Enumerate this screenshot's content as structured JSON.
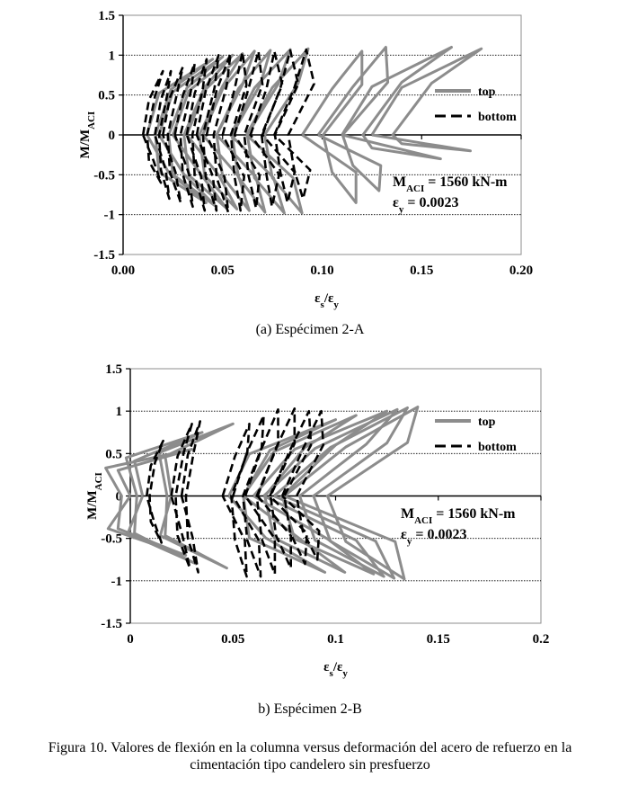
{
  "figure_caption_line1": "Figura 10. Valores de flexión en la columna versus deformación del acero de refuerzo en la",
  "figure_caption_line2": "cimentación tipo candelero sin presfuerzo",
  "chart_data": [
    {
      "type": "line",
      "caption": "(a) Espécimen 2-A",
      "xlabel_main": "ε",
      "xlabel_sub1": "s",
      "xlabel_mid": "/ε",
      "xlabel_sub2": "y",
      "ylabel_main": "M/M",
      "ylabel_sub": "ACI",
      "xlim": [
        0,
        0.2
      ],
      "ylim": [
        -1.5,
        1.5
      ],
      "xticks": [
        0,
        0.05,
        0.1,
        0.15,
        0.2
      ],
      "xtick_labels": [
        "0.00",
        "0.05",
        "0.10",
        "0.15",
        "0.20"
      ],
      "yticks": [
        1.5,
        1,
        0.5,
        0,
        -0.5,
        -1,
        -1.5
      ],
      "ytick_labels": [
        "1.5",
        "1",
        "0.5",
        "0",
        "-0.5",
        "-1",
        "-1.5"
      ],
      "gridlines_y": [
        1,
        0.5,
        -0.5,
        -1
      ],
      "legend_position": "upper-right",
      "annotation": {
        "m_main": "M",
        "m_sub": "ACI",
        "m_text": " = 1560 kN-m",
        "e_main": "ε",
        "e_sub": "y",
        "e_text": " = 0.0023"
      },
      "series": [
        {
          "name": "top",
          "color": "#8c8c8c",
          "style": "solid",
          "loops": [
            {
              "x0": 0.012,
              "xr": 0.045,
              "ymax": 0.95,
              "ymin": -0.85,
              "lean": 0.012
            },
            {
              "x0": 0.018,
              "xr": 0.05,
              "ymax": 0.98,
              "ymin": -0.9,
              "lean": 0.014
            },
            {
              "x0": 0.025,
              "xr": 0.055,
              "ymax": 1.0,
              "ymin": -0.92,
              "lean": 0.016
            },
            {
              "x0": 0.032,
              "xr": 0.06,
              "ymax": 1.02,
              "ymin": -0.93,
              "lean": 0.018
            },
            {
              "x0": 0.04,
              "xr": 0.066,
              "ymax": 1.05,
              "ymin": -0.95,
              "lean": 0.02
            },
            {
              "x0": 0.047,
              "xr": 0.074,
              "ymax": 1.06,
              "ymin": -0.97,
              "lean": 0.022
            },
            {
              "x0": 0.054,
              "xr": 0.084,
              "ymax": 1.07,
              "ymin": -0.98,
              "lean": 0.024
            },
            {
              "x0": 0.062,
              "xr": 0.093,
              "ymax": 1.08,
              "ymin": -0.98,
              "lean": 0.026
            },
            {
              "x0": 0.09,
              "xr": 0.12,
              "ymax": 1.05,
              "ymin": -0.85,
              "lean": 0.03
            },
            {
              "x0": 0.098,
              "xr": 0.132,
              "ymax": 1.1,
              "ymin": -0.7,
              "lean": 0.035
            },
            {
              "x0": 0.11,
              "xr": 0.165,
              "ymax": 1.1,
              "ymin": -0.3,
              "lean": 0.03
            },
            {
              "x0": 0.125,
              "xr": 0.18,
              "ymax": 1.08,
              "ymin": -0.2,
              "lean": 0.03
            }
          ]
        },
        {
          "name": "bottom",
          "color": "#000000",
          "style": "dashed",
          "loops": [
            {
              "x0": 0.01,
              "xr": 0.02,
              "ymax": 0.8,
              "ymin": -0.6,
              "lean": 0.006
            },
            {
              "x0": 0.016,
              "xr": 0.024,
              "ymax": 0.8,
              "ymin": -0.8,
              "lean": 0.006
            },
            {
              "x0": 0.02,
              "xr": 0.03,
              "ymax": 0.85,
              "ymin": -0.85,
              "lean": 0.007
            },
            {
              "x0": 0.026,
              "xr": 0.036,
              "ymax": 0.9,
              "ymin": -0.9,
              "lean": 0.008
            },
            {
              "x0": 0.032,
              "xr": 0.042,
              "ymax": 0.95,
              "ymin": -0.95,
              "lean": 0.008
            },
            {
              "x0": 0.037,
              "xr": 0.048,
              "ymax": 1.0,
              "ymin": -0.95,
              "lean": 0.009
            },
            {
              "x0": 0.042,
              "xr": 0.054,
              "ymax": 1.02,
              "ymin": -0.97,
              "lean": 0.01
            },
            {
              "x0": 0.05,
              "xr": 0.06,
              "ymax": 1.04,
              "ymin": -0.95,
              "lean": 0.012
            },
            {
              "x0": 0.056,
              "xr": 0.068,
              "ymax": 1.05,
              "ymin": -0.92,
              "lean": 0.014
            },
            {
              "x0": 0.064,
              "xr": 0.076,
              "ymax": 1.05,
              "ymin": -0.9,
              "lean": 0.016
            },
            {
              "x0": 0.07,
              "xr": 0.084,
              "ymax": 1.06,
              "ymin": -0.85,
              "lean": 0.018
            },
            {
              "x0": 0.076,
              "xr": 0.092,
              "ymax": 1.07,
              "ymin": -0.8,
              "lean": 0.02
            }
          ]
        }
      ]
    },
    {
      "type": "line",
      "caption": "b) Espécimen 2-B",
      "xlabel_main": "ε",
      "xlabel_sub1": "s",
      "xlabel_mid": "/ε",
      "xlabel_sub2": "y",
      "ylabel_main": "M/M",
      "ylabel_sub": "ACI",
      "xlim": [
        0,
        0.2
      ],
      "ylim": [
        -1.5,
        1.5
      ],
      "xticks": [
        0,
        0.05,
        0.1,
        0.15,
        0.2
      ],
      "xtick_labels": [
        "0",
        "0.05",
        "0.1",
        "0.15",
        "0.2"
      ],
      "yticks": [
        1.5,
        1,
        0.5,
        0,
        -0.5,
        -1,
        -1.5
      ],
      "ytick_labels": [
        "1.5",
        "1",
        "0.5",
        "0",
        "-0.5",
        "-1",
        "-1.5"
      ],
      "gridlines_y": [
        1,
        0.5,
        -0.5,
        -1
      ],
      "legend_position": "upper-right",
      "annotation": {
        "m_main": "M",
        "m_sub": "ACI",
        "m_text": " = 1560 kN-m",
        "e_main": "ε",
        "e_sub": "y",
        "e_text": " = 0.0023"
      },
      "series": [
        {
          "name": "top",
          "color": "#8c8c8c",
          "style": "solid",
          "loops": [
            {
              "x0": 0.0,
              "xr": 0.03,
              "ymax": 0.55,
              "ymin": -0.7,
              "lean": -0.012
            },
            {
              "x0": 0.006,
              "xr": 0.035,
              "ymax": 0.75,
              "ymin": -0.8,
              "lean": -0.008
            },
            {
              "x0": 0.02,
              "xr": 0.05,
              "ymax": 0.85,
              "ymin": -0.85,
              "lean": -0.006
            },
            {
              "x0": 0.048,
              "xr": 0.1,
              "ymax": 0.9,
              "ymin": -0.9,
              "lean": 0.02
            },
            {
              "x0": 0.055,
              "xr": 0.11,
              "ymax": 0.95,
              "ymin": -0.9,
              "lean": 0.03
            },
            {
              "x0": 0.06,
              "xr": 0.125,
              "ymax": 1.0,
              "ymin": -0.92,
              "lean": 0.04
            },
            {
              "x0": 0.065,
              "xr": 0.13,
              "ymax": 1.02,
              "ymin": -0.95,
              "lean": 0.05
            },
            {
              "x0": 0.07,
              "xr": 0.135,
              "ymax": 1.04,
              "ymin": -0.97,
              "lean": 0.055
            },
            {
              "x0": 0.075,
              "xr": 0.14,
              "ymax": 1.05,
              "ymin": -0.98,
              "lean": 0.06
            }
          ]
        },
        {
          "name": "bottom",
          "color": "#000000",
          "style": "dashed",
          "loops": [
            {
              "x0": 0.008,
              "xr": 0.016,
              "ymax": 0.65,
              "ymin": -0.55,
              "lean": 0.004
            },
            {
              "x0": 0.02,
              "xr": 0.03,
              "ymax": 0.85,
              "ymin": -0.85,
              "lean": 0.006
            },
            {
              "x0": 0.025,
              "xr": 0.034,
              "ymax": 0.88,
              "ymin": -0.9,
              "lean": 0.006
            },
            {
              "x0": 0.045,
              "xr": 0.058,
              "ymax": 0.85,
              "ymin": -0.95,
              "lean": 0.012
            },
            {
              "x0": 0.05,
              "xr": 0.065,
              "ymax": 0.95,
              "ymin": -0.95,
              "lean": 0.014
            },
            {
              "x0": 0.056,
              "xr": 0.072,
              "ymax": 1.02,
              "ymin": -0.92,
              "lean": 0.016
            },
            {
              "x0": 0.062,
              "xr": 0.08,
              "ymax": 1.03,
              "ymin": -0.85,
              "lean": 0.018
            },
            {
              "x0": 0.068,
              "xr": 0.087,
              "ymax": 1.0,
              "ymin": -0.8,
              "lean": 0.02
            },
            {
              "x0": 0.074,
              "xr": 0.093,
              "ymax": 1.0,
              "ymin": -0.75,
              "lean": 0.02
            }
          ]
        }
      ]
    }
  ]
}
